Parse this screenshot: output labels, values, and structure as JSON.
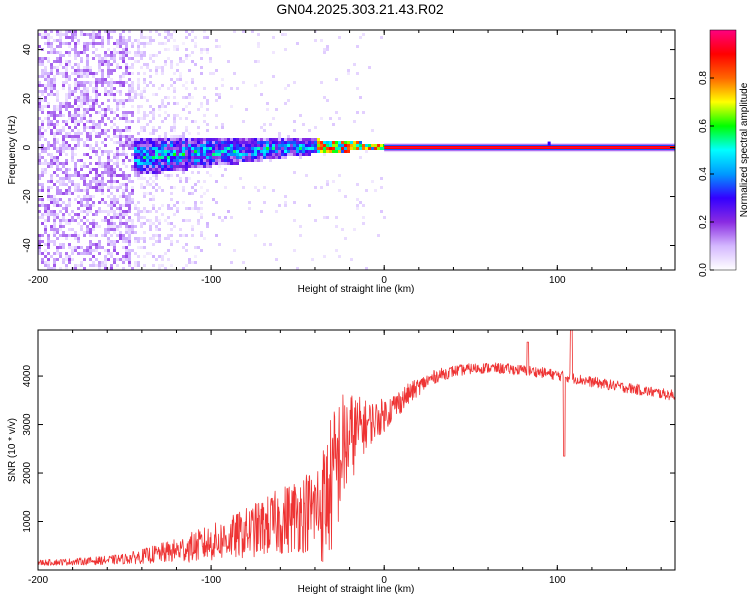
{
  "title": "GN04.2025.303.21.43.R02",
  "chart_data": [
    {
      "type": "heatmap",
      "title": "GN04.2025.303.21.43.R02",
      "xlabel": "Height of straight line (km)",
      "ylabel": "Frequency (Hz)",
      "xlim": [
        -200,
        168
      ],
      "ylim": [
        -50,
        48
      ],
      "x_ticks": [
        -200,
        -100,
        0,
        100
      ],
      "x_tick_labels": [
        "-200",
        "-100",
        "0",
        "100"
      ],
      "y_ticks": [
        -40,
        -20,
        0,
        20,
        40
      ],
      "y_tick_labels": [
        "-40",
        "-20",
        "0",
        "20",
        "40"
      ],
      "colorbar": {
        "label": "Normalized spectral amplitude",
        "range": [
          0,
          1
        ],
        "ticks": [
          0.0,
          0.2,
          0.4,
          0.6,
          0.8
        ],
        "tick_labels": [
          "0.0",
          "0.2",
          "0.4",
          "0.6",
          "0.8"
        ],
        "colors": [
          "#ffffff",
          "#d4b8ff",
          "#8a2be2",
          "#3300ff",
          "#0099ff",
          "#00ffff",
          "#00ff00",
          "#ffff00",
          "#ff6600",
          "#ff0000",
          "#ff0080"
        ]
      },
      "features": [
        {
          "name": "diffuse noise",
          "x_range": [
            -200,
            -145
          ],
          "freq_range": [
            -50,
            48
          ],
          "amplitude": 0.1
        },
        {
          "name": "fading noise",
          "x_range": [
            -145,
            -90
          ],
          "freq_range": [
            -50,
            48
          ],
          "amplitude": 0.05
        },
        {
          "name": "broadened signal",
          "x_range": [
            -145,
            -40
          ],
          "freq_half_width": [
            8,
            3
          ],
          "amplitude": 0.45
        },
        {
          "name": "converging signal",
          "x_range": [
            -40,
            0
          ],
          "freq_half_width": [
            3,
            1
          ],
          "amplitude": 0.7
        },
        {
          "name": "narrow carrier",
          "x_range": [
            0,
            168
          ],
          "frequency": 0,
          "amplitude": 0.95
        }
      ]
    },
    {
      "type": "line",
      "xlabel": "Height of straight line (km)",
      "ylabel": "SNR (10 * v/v)",
      "xlim": [
        -200,
        168
      ],
      "ylim": [
        0,
        4950
      ],
      "x_ticks": [
        -200,
        -100,
        0,
        100
      ],
      "x_tick_labels": [
        "-200",
        "-100",
        "0",
        "100"
      ],
      "y_ticks": [
        1000,
        2000,
        3000,
        4000
      ],
      "y_tick_labels": [
        "1000",
        "2000",
        "3000",
        "4000"
      ],
      "series": [
        {
          "name": "SNR",
          "color": "#ee3333",
          "x": [
            -200,
            -180,
            -160,
            -150,
            -140,
            -130,
            -120,
            -110,
            -100,
            -90,
            -80,
            -70,
            -60,
            -50,
            -40,
            -35,
            -30,
            -25,
            -20,
            -15,
            -10,
            -5,
            0,
            5,
            10,
            15,
            20,
            25,
            30,
            40,
            50,
            60,
            70,
            80,
            90,
            100,
            110,
            120,
            130,
            140,
            150,
            160,
            168
          ],
          "values": [
            150,
            170,
            200,
            230,
            280,
            340,
            400,
            480,
            560,
            650,
            760,
            880,
            1000,
            1150,
            1250,
            1350,
            1800,
            2400,
            2700,
            2900,
            3000,
            3100,
            3200,
            3350,
            3500,
            3650,
            3780,
            3900,
            4000,
            4100,
            4150,
            4170,
            4150,
            4120,
            4080,
            4020,
            3950,
            3880,
            3820,
            3760,
            3700,
            3640,
            3600
          ],
          "noise": [
            60,
            70,
            90,
            110,
            150,
            200,
            250,
            320,
            380,
            440,
            520,
            600,
            700,
            800,
            900,
            1300,
            1500,
            1300,
            1000,
            700,
            500,
            400,
            350,
            300,
            260,
            220,
            180,
            160,
            140,
            120,
            110,
            110,
            110,
            110,
            110,
            110,
            110,
            110,
            110,
            110,
            110,
            110,
            110
          ]
        }
      ],
      "annotations": [
        {
          "name": "spike",
          "x": 83,
          "value": 4700
        },
        {
          "name": "dip",
          "x": 104,
          "value": 2350
        },
        {
          "name": "peak",
          "x": 108,
          "value": 4950
        }
      ]
    }
  ]
}
